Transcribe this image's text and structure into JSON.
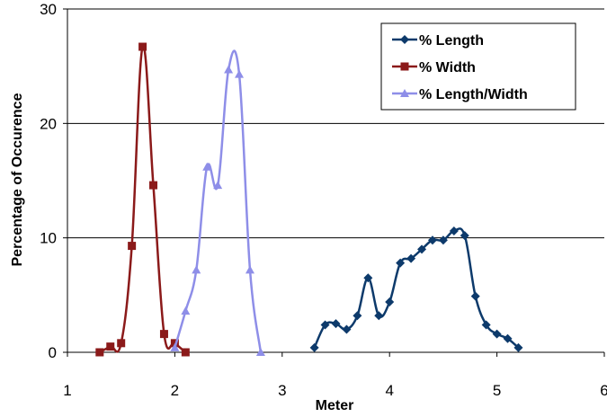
{
  "chart_data": {
    "type": "line",
    "title": "",
    "xlabel": "Meter",
    "ylabel": "Percentage of Occurence",
    "xlim": [
      1,
      6
    ],
    "ylim": [
      0,
      30
    ],
    "xticks": [
      "1",
      "2",
      "3",
      "4",
      "5",
      "6"
    ],
    "yticks": [
      "0",
      "10",
      "20",
      "30"
    ],
    "grid": "horizontal",
    "legend_position": "top-right",
    "series": [
      {
        "name": "% Length",
        "color": "#0d3a6b",
        "marker": "diamond",
        "points": [
          [
            3.3,
            0.4
          ],
          [
            3.4,
            2.4
          ],
          [
            3.5,
            2.5
          ],
          [
            3.6,
            2.0
          ],
          [
            3.7,
            3.2
          ],
          [
            3.8,
            6.5
          ],
          [
            3.9,
            3.2
          ],
          [
            4.0,
            4.4
          ],
          [
            4.1,
            7.8
          ],
          [
            4.2,
            8.2
          ],
          [
            4.3,
            9.0
          ],
          [
            4.4,
            9.8
          ],
          [
            4.5,
            9.8
          ],
          [
            4.6,
            10.6
          ],
          [
            4.7,
            10.2
          ],
          [
            4.8,
            4.9
          ],
          [
            4.9,
            2.4
          ],
          [
            5.0,
            1.6
          ],
          [
            5.1,
            1.2
          ],
          [
            5.2,
            0.4
          ]
        ]
      },
      {
        "name": "% Width",
        "color": "#8b1a1a",
        "marker": "square",
        "points": [
          [
            1.3,
            0.0
          ],
          [
            1.4,
            0.5
          ],
          [
            1.5,
            0.8
          ],
          [
            1.6,
            9.3
          ],
          [
            1.7,
            26.7
          ],
          [
            1.8,
            14.6
          ],
          [
            1.9,
            1.6
          ],
          [
            2.0,
            0.8
          ],
          [
            2.1,
            0.0
          ]
        ]
      },
      {
        "name": "% Length/Width",
        "color": "#8e8ee8",
        "marker": "triangle",
        "points": [
          [
            2.0,
            0.4
          ],
          [
            2.1,
            3.6
          ],
          [
            2.2,
            7.2
          ],
          [
            2.3,
            16.2
          ],
          [
            2.4,
            14.6
          ],
          [
            2.5,
            24.7
          ],
          [
            2.6,
            24.3
          ],
          [
            2.7,
            7.2
          ],
          [
            2.8,
            0.0
          ]
        ]
      }
    ]
  }
}
